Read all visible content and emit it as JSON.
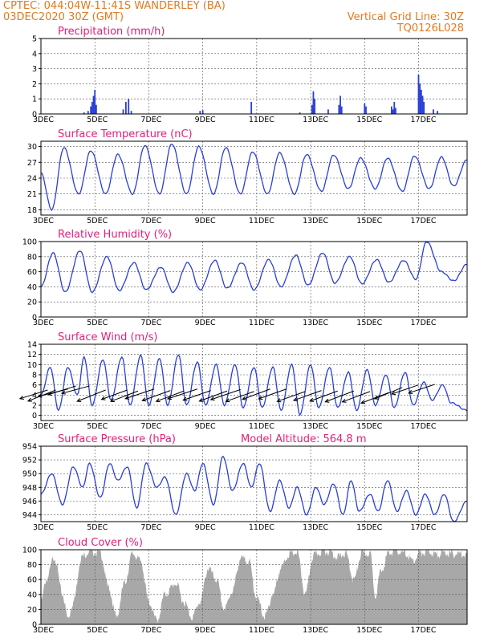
{
  "header": {
    "line1_left": "CPTEC:   044:04W-11:41S   WANDERLEY (BA)",
    "line2_left": "03DEC2020 30Z (GMT)",
    "line2_right": "Vertical Grid Line: 30Z",
    "line3_right": "TQ0126L028"
  },
  "chart_data": [
    {
      "id": "precip",
      "type": "bar",
      "title": "Precipitation (mm/h)",
      "ylim": [
        0,
        5
      ],
      "yticks": [
        0,
        1,
        2,
        3,
        4,
        5
      ],
      "xlabels": [
        "3DEC",
        "5DEC",
        "7DEC",
        "9DEC",
        "11DEC",
        "13DEC",
        "15DEC",
        "17DEC"
      ],
      "x_start_day": 3,
      "x_end_day": 18.8,
      "values": [
        [
          4.6,
          0.1
        ],
        [
          4.75,
          0.2
        ],
        [
          4.85,
          0.5
        ],
        [
          4.9,
          0.8
        ],
        [
          4.95,
          1.2
        ],
        [
          5.0,
          1.6
        ],
        [
          5.05,
          0.6
        ],
        [
          6.05,
          0.3
        ],
        [
          6.15,
          0.8
        ],
        [
          6.25,
          1.0
        ],
        [
          6.35,
          0.2
        ],
        [
          8.9,
          0.2
        ],
        [
          9.0,
          0.25
        ],
        [
          10.8,
          0.8
        ],
        [
          12.6,
          0.1
        ],
        [
          13.05,
          0.6
        ],
        [
          13.1,
          1.5
        ],
        [
          13.15,
          1.0
        ],
        [
          13.65,
          0.3
        ],
        [
          14.05,
          0.6
        ],
        [
          14.1,
          1.2
        ],
        [
          14.15,
          0.5
        ],
        [
          15.0,
          0.7
        ],
        [
          15.05,
          0.5
        ],
        [
          16.0,
          0.5
        ],
        [
          16.05,
          0.3
        ],
        [
          16.1,
          0.8
        ],
        [
          16.15,
          0.4
        ],
        [
          17.0,
          2.6
        ],
        [
          17.05,
          2.0
        ],
        [
          17.1,
          1.6
        ],
        [
          17.15,
          1.2
        ],
        [
          17.2,
          0.8
        ],
        [
          17.55,
          0.3
        ],
        [
          17.7,
          0.2
        ]
      ]
    },
    {
      "id": "temp",
      "type": "line",
      "title": "Surface Temperature (nC)",
      "ylim": [
        17,
        31
      ],
      "yticks": [
        18,
        21,
        24,
        27,
        30
      ],
      "xlabels": [
        "3DEC",
        "5DEC",
        "7DEC",
        "9DEC",
        "11DEC",
        "13DEC",
        "15DEC",
        "17DEC"
      ],
      "x_start_day": 3,
      "x_end_day": 18.8,
      "daily": [
        [
          3.0,
          25
        ],
        [
          3.4,
          18
        ],
        [
          3.85,
          29.8
        ],
        [
          4.4,
          21
        ],
        [
          4.85,
          29.2
        ],
        [
          5.4,
          21
        ],
        [
          5.85,
          28.5
        ],
        [
          6.4,
          21
        ],
        [
          6.85,
          30.2
        ],
        [
          7.4,
          21
        ],
        [
          7.85,
          30.5
        ],
        [
          8.4,
          21
        ],
        [
          8.85,
          30
        ],
        [
          9.4,
          21
        ],
        [
          9.85,
          29.8
        ],
        [
          10.4,
          21
        ],
        [
          10.85,
          29
        ],
        [
          11.4,
          21
        ],
        [
          11.85,
          28.8
        ],
        [
          12.4,
          21
        ],
        [
          12.85,
          28.5
        ],
        [
          13.4,
          21.5
        ],
        [
          13.85,
          28.4
        ],
        [
          14.4,
          22
        ],
        [
          14.85,
          27.8
        ],
        [
          15.4,
          22
        ],
        [
          15.85,
          27.8
        ],
        [
          16.4,
          21.5
        ],
        [
          16.85,
          28.2
        ],
        [
          17.4,
          22
        ],
        [
          17.85,
          28
        ],
        [
          18.3,
          22.5
        ],
        [
          18.8,
          27.5
        ]
      ]
    },
    {
      "id": "rh",
      "type": "line",
      "title": "Relative Humidity (%)",
      "ylim": [
        0,
        100
      ],
      "yticks": [
        0,
        20,
        40,
        60,
        80,
        100
      ],
      "xlabels": [
        "3DEC",
        "5DEC",
        "7DEC",
        "9DEC",
        "11DEC",
        "13DEC",
        "15DEC",
        "17DEC"
      ],
      "x_start_day": 3,
      "x_end_day": 18.8,
      "daily": [
        [
          3.0,
          40
        ],
        [
          3.45,
          85
        ],
        [
          3.9,
          33
        ],
        [
          4.45,
          88
        ],
        [
          4.9,
          33
        ],
        [
          5.45,
          80
        ],
        [
          5.9,
          35
        ],
        [
          6.45,
          72
        ],
        [
          6.9,
          36
        ],
        [
          7.45,
          66
        ],
        [
          7.9,
          33
        ],
        [
          8.45,
          72
        ],
        [
          8.9,
          36
        ],
        [
          9.45,
          75
        ],
        [
          9.9,
          38
        ],
        [
          10.45,
          72
        ],
        [
          10.9,
          36
        ],
        [
          11.45,
          76
        ],
        [
          11.9,
          40
        ],
        [
          12.45,
          82
        ],
        [
          12.9,
          42
        ],
        [
          13.45,
          85
        ],
        [
          13.9,
          45
        ],
        [
          14.45,
          80
        ],
        [
          14.9,
          44
        ],
        [
          15.45,
          76
        ],
        [
          15.9,
          46
        ],
        [
          16.45,
          75
        ],
        [
          16.9,
          50
        ],
        [
          17.3,
          100
        ],
        [
          17.85,
          60
        ],
        [
          18.3,
          48
        ],
        [
          18.8,
          70
        ]
      ]
    },
    {
      "id": "wind",
      "type": "line",
      "title": "Surface Wind (m/s)",
      "ylim": [
        -1,
        14
      ],
      "yticks": [
        0,
        2,
        4,
        6,
        8,
        10,
        12,
        14
      ],
      "xlabels": [
        "3DEC",
        "5DEC",
        "7DEC",
        "9DEC",
        "11DEC",
        "13DEC",
        "15DEC",
        "17DEC"
      ],
      "x_start_day": 3,
      "x_end_day": 18.8,
      "daily": [
        [
          3.0,
          4
        ],
        [
          3.35,
          9.5
        ],
        [
          3.65,
          1
        ],
        [
          4.0,
          9.5
        ],
        [
          4.35,
          4
        ],
        [
          4.6,
          11.5
        ],
        [
          4.9,
          2
        ],
        [
          5.3,
          11
        ],
        [
          5.6,
          3
        ],
        [
          6.0,
          11.5
        ],
        [
          6.3,
          2
        ],
        [
          6.7,
          11.8
        ],
        [
          7.0,
          2
        ],
        [
          7.4,
          11.2
        ],
        [
          7.7,
          2
        ],
        [
          8.1,
          12
        ],
        [
          8.4,
          2
        ],
        [
          8.8,
          10.5
        ],
        [
          9.1,
          2
        ],
        [
          9.5,
          10
        ],
        [
          9.8,
          2
        ],
        [
          10.2,
          10
        ],
        [
          10.5,
          1.5
        ],
        [
          10.9,
          9.5
        ],
        [
          11.2,
          1.5
        ],
        [
          11.6,
          9.5
        ],
        [
          11.9,
          1
        ],
        [
          12.3,
          10
        ],
        [
          12.6,
          0.2
        ],
        [
          13.0,
          10
        ],
        [
          13.3,
          1.5
        ],
        [
          13.7,
          9.5
        ],
        [
          14.0,
          1.5
        ],
        [
          14.4,
          8.5
        ],
        [
          14.7,
          1
        ],
        [
          15.1,
          9
        ],
        [
          15.4,
          2
        ],
        [
          15.8,
          8
        ],
        [
          16.1,
          1.5
        ],
        [
          16.5,
          8.5
        ],
        [
          16.8,
          2
        ],
        [
          17.2,
          6.5
        ],
        [
          17.5,
          3
        ],
        [
          17.9,
          6
        ],
        [
          18.2,
          2.5
        ],
        [
          18.8,
          1
        ]
      ],
      "barbs": [
        [
          3.25,
          5.0,
          3.45,
          3.6
        ],
        [
          3.55,
          5.0,
          3.45,
          4.6
        ],
        [
          4.0,
          5.2,
          3.7,
          3.1
        ],
        [
          4.3,
          5.8,
          3.45,
          3.6
        ],
        [
          4.8,
          5.8,
          3.45,
          3.1
        ],
        [
          5.4,
          5.0,
          3.55,
          4.7
        ],
        [
          6.2,
          5.0,
          3.2,
          3.9
        ],
        [
          6.6,
          4.8,
          3.4,
          4.3
        ],
        [
          7.2,
          5.2,
          3.6,
          4.0
        ],
        [
          7.8,
          4.9,
          3.5,
          4.2
        ],
        [
          8.3,
          4.8,
          3.45,
          4.3
        ],
        [
          8.8,
          5.2,
          3.7,
          4.1
        ],
        [
          9.3,
          4.9,
          3.45,
          4.0
        ],
        [
          9.9,
          4.8,
          3.45,
          4.2
        ],
        [
          10.4,
          5.1,
          3.7,
          4.2
        ],
        [
          10.9,
          4.7,
          3.5,
          4.1
        ],
        [
          11.5,
          5.2,
          3.45,
          4.3
        ],
        [
          12.1,
          5.2,
          3.45,
          4.1
        ],
        [
          12.8,
          4.7,
          3.5,
          4.1
        ],
        [
          13.4,
          4.9,
          3.45,
          4.1
        ],
        [
          14.0,
          4.8,
          3.45,
          4.2
        ],
        [
          14.6,
          4.8,
          3.55,
          4.5
        ],
        [
          15.2,
          4.7,
          3.45,
          4.3
        ],
        [
          15.9,
          4.5,
          3.45,
          4.4
        ],
        [
          16.4,
          5.5,
          3.45,
          4.7
        ],
        [
          17.0,
          6.0,
          3.35,
          3.8
        ],
        [
          17.6,
          6.1,
          3.25,
          3.6
        ]
      ]
    },
    {
      "id": "press",
      "type": "line",
      "title": "Surface Pressure (hPa)",
      "extra_title": "Model Altitude: 564.8 m",
      "ylim": [
        943,
        954
      ],
      "yticks": [
        944,
        946,
        948,
        950,
        952,
        954
      ],
      "xlabels": [
        "3DEC",
        "5DEC",
        "7DEC",
        "9DEC",
        "11DEC",
        "13DEC",
        "15DEC",
        "17DEC"
      ],
      "x_start_day": 3,
      "x_end_day": 18.8,
      "daily": [
        [
          3.0,
          947
        ],
        [
          3.4,
          950
        ],
        [
          3.8,
          945.5
        ],
        [
          4.2,
          951
        ],
        [
          4.55,
          948
        ],
        [
          4.8,
          951.5
        ],
        [
          5.2,
          946.5
        ],
        [
          5.55,
          951.5
        ],
        [
          5.85,
          949
        ],
        [
          6.2,
          951
        ],
        [
          6.55,
          945
        ],
        [
          6.9,
          951.5
        ],
        [
          7.3,
          948
        ],
        [
          7.6,
          949.5
        ],
        [
          8.0,
          944
        ],
        [
          8.4,
          950
        ],
        [
          8.7,
          947.5
        ],
        [
          9.0,
          951.5
        ],
        [
          9.4,
          945.5
        ],
        [
          9.75,
          952.5
        ],
        [
          10.1,
          947.5
        ],
        [
          10.5,
          951.5
        ],
        [
          10.8,
          948
        ],
        [
          11.1,
          951.5
        ],
        [
          11.5,
          944.5
        ],
        [
          11.85,
          949
        ],
        [
          12.2,
          945
        ],
        [
          12.5,
          948
        ],
        [
          12.85,
          944
        ],
        [
          13.2,
          948
        ],
        [
          13.5,
          945.5
        ],
        [
          13.85,
          948.5
        ],
        [
          14.2,
          944
        ],
        [
          14.5,
          949
        ],
        [
          14.8,
          944.5
        ],
        [
          15.2,
          947
        ],
        [
          15.5,
          944.5
        ],
        [
          15.85,
          949
        ],
        [
          16.2,
          944.5
        ],
        [
          16.55,
          947.5
        ],
        [
          16.9,
          944
        ],
        [
          17.25,
          947
        ],
        [
          17.6,
          944
        ],
        [
          17.95,
          947
        ],
        [
          18.3,
          943
        ],
        [
          18.8,
          946
        ]
      ]
    },
    {
      "id": "cloud",
      "type": "area",
      "title": "Cloud Cover (%)",
      "ylim": [
        0,
        100
      ],
      "yticks": [
        0,
        20,
        40,
        60,
        80,
        100
      ],
      "xlabels": [
        "3DEC",
        "5DEC",
        "7DEC",
        "9DEC",
        "11DEC",
        "13DEC",
        "15DEC",
        "17DEC"
      ],
      "x_start_day": 3,
      "x_end_day": 18.8,
      "daily": [
        [
          3.0,
          30
        ],
        [
          3.2,
          60
        ],
        [
          3.5,
          90
        ],
        [
          3.8,
          40
        ],
        [
          4.0,
          8
        ],
        [
          4.2,
          30
        ],
        [
          4.5,
          90
        ],
        [
          4.8,
          98
        ],
        [
          5.2,
          96
        ],
        [
          5.5,
          50
        ],
        [
          5.8,
          10
        ],
        [
          6.1,
          55
        ],
        [
          6.4,
          95
        ],
        [
          6.7,
          85
        ],
        [
          7.0,
          30
        ],
        [
          7.3,
          5
        ],
        [
          7.6,
          40
        ],
        [
          8.0,
          55
        ],
        [
          8.3,
          30
        ],
        [
          8.6,
          10
        ],
        [
          8.9,
          30
        ],
        [
          9.2,
          75
        ],
        [
          9.5,
          60
        ],
        [
          9.8,
          20
        ],
        [
          10.1,
          45
        ],
        [
          10.4,
          88
        ],
        [
          10.7,
          85
        ],
        [
          11.0,
          35
        ],
        [
          11.3,
          10
        ],
        [
          11.6,
          40
        ],
        [
          11.9,
          75
        ],
        [
          12.2,
          94
        ],
        [
          12.5,
          96
        ],
        [
          12.8,
          40
        ],
        [
          13.1,
          92
        ],
        [
          13.4,
          97
        ],
        [
          13.7,
          98
        ],
        [
          14.0,
          90
        ],
        [
          14.3,
          95
        ],
        [
          14.6,
          60
        ],
        [
          14.9,
          95
        ],
        [
          15.2,
          95
        ],
        [
          15.4,
          40
        ],
        [
          15.6,
          70
        ],
        [
          15.9,
          96
        ],
        [
          16.2,
          98
        ],
        [
          16.5,
          95
        ],
        [
          16.8,
          85
        ],
        [
          17.1,
          96
        ],
        [
          17.4,
          97
        ],
        [
          17.7,
          93
        ],
        [
          18.0,
          96
        ],
        [
          18.3,
          94
        ],
        [
          18.6,
          95
        ],
        [
          18.8,
          94
        ]
      ]
    }
  ]
}
